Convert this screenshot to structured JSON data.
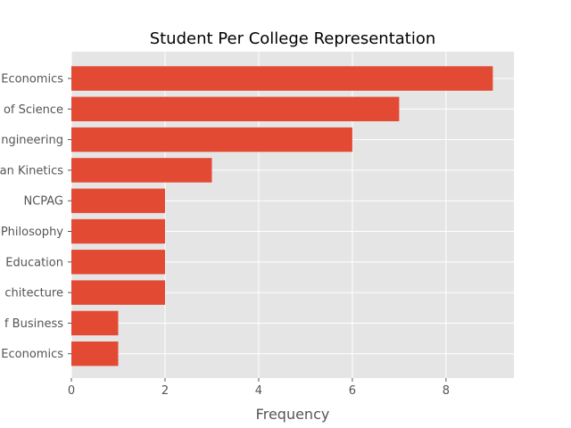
{
  "chart_data": {
    "type": "bar",
    "orientation": "horizontal",
    "title": "Student Per College Representation",
    "xlabel": "Frequency",
    "ylabel": "",
    "categories": [
      "Economics",
      "of Science",
      "ngineering",
      "an Kinetics",
      "NCPAG",
      "Philosophy",
      "Education",
      "chitecture",
      "f Business",
      "Economics"
    ],
    "values": [
      9,
      7,
      6,
      3,
      2,
      2,
      2,
      2,
      1,
      1
    ],
    "xlim": [
      0,
      9.45
    ],
    "xticks": [
      0,
      2,
      4,
      6,
      8
    ],
    "grid": true,
    "bar_color": "#E24A33",
    "background_color": "#E5E5E5",
    "grid_color": "#FFFFFF"
  }
}
